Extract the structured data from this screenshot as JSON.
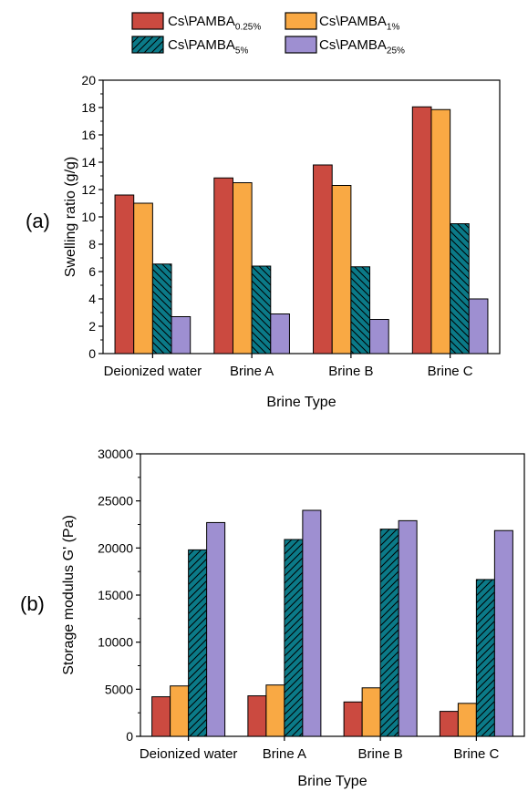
{
  "legend": {
    "items": [
      {
        "base": "Cs\\PAMBA",
        "sub": "0.25%",
        "color": "#cb4a40",
        "pattern": "none"
      },
      {
        "base": "Cs\\PAMBA",
        "sub": "1%",
        "color": "#f9a944",
        "pattern": "none"
      },
      {
        "base": "Cs\\PAMBA",
        "sub": "5%",
        "color": "#0b7a88",
        "pattern": "hatch"
      },
      {
        "base": "Cs\\PAMBA",
        "sub": "25%",
        "color": "#9e8fd1",
        "pattern": "none"
      }
    ]
  },
  "chart_data": [
    {
      "type": "bar",
      "panel_label": "(a)",
      "categories": [
        "Deionized water",
        "Brine A",
        "Brine B",
        "Brine C"
      ],
      "xlabel": "Brine Type",
      "ylabel": "Swelling ratio (g/g)",
      "ylim": [
        0,
        20
      ],
      "yticks": [
        0,
        2,
        4,
        6,
        8,
        10,
        12,
        14,
        16,
        18,
        20
      ],
      "series": [
        {
          "name": "Cs\\PAMBA0.25%",
          "values": [
            11.6,
            12.85,
            13.8,
            18.05
          ]
        },
        {
          "name": "Cs\\PAMBA1%",
          "values": [
            11.0,
            12.5,
            12.3,
            17.85
          ]
        },
        {
          "name": "Cs\\PAMBA5%",
          "values": [
            6.55,
            6.4,
            6.35,
            9.5
          ]
        },
        {
          "name": "Cs\\PAMBA25%",
          "values": [
            2.7,
            2.9,
            2.5,
            4.0
          ]
        }
      ]
    },
    {
      "type": "bar",
      "panel_label": "(b)",
      "categories": [
        "Deionized water",
        "Brine A",
        "Brine B",
        "Brine C"
      ],
      "xlabel": "Brine Type",
      "ylabel": "Storage modulus G' (Pa)",
      "ylim": [
        0,
        30000
      ],
      "yticks": [
        0,
        5000,
        10000,
        15000,
        20000,
        25000,
        30000
      ],
      "series": [
        {
          "name": "Cs\\PAMBA0.25%",
          "values": [
            4200,
            4300,
            3650,
            2650
          ]
        },
        {
          "name": "Cs\\PAMBA1%",
          "values": [
            5350,
            5450,
            5150,
            3500
          ]
        },
        {
          "name": "Cs\\PAMBA5%",
          "values": [
            19800,
            20900,
            22000,
            16650
          ]
        },
        {
          "name": "Cs\\PAMBA25%",
          "values": [
            22700,
            24000,
            22900,
            21850
          ]
        }
      ]
    }
  ]
}
